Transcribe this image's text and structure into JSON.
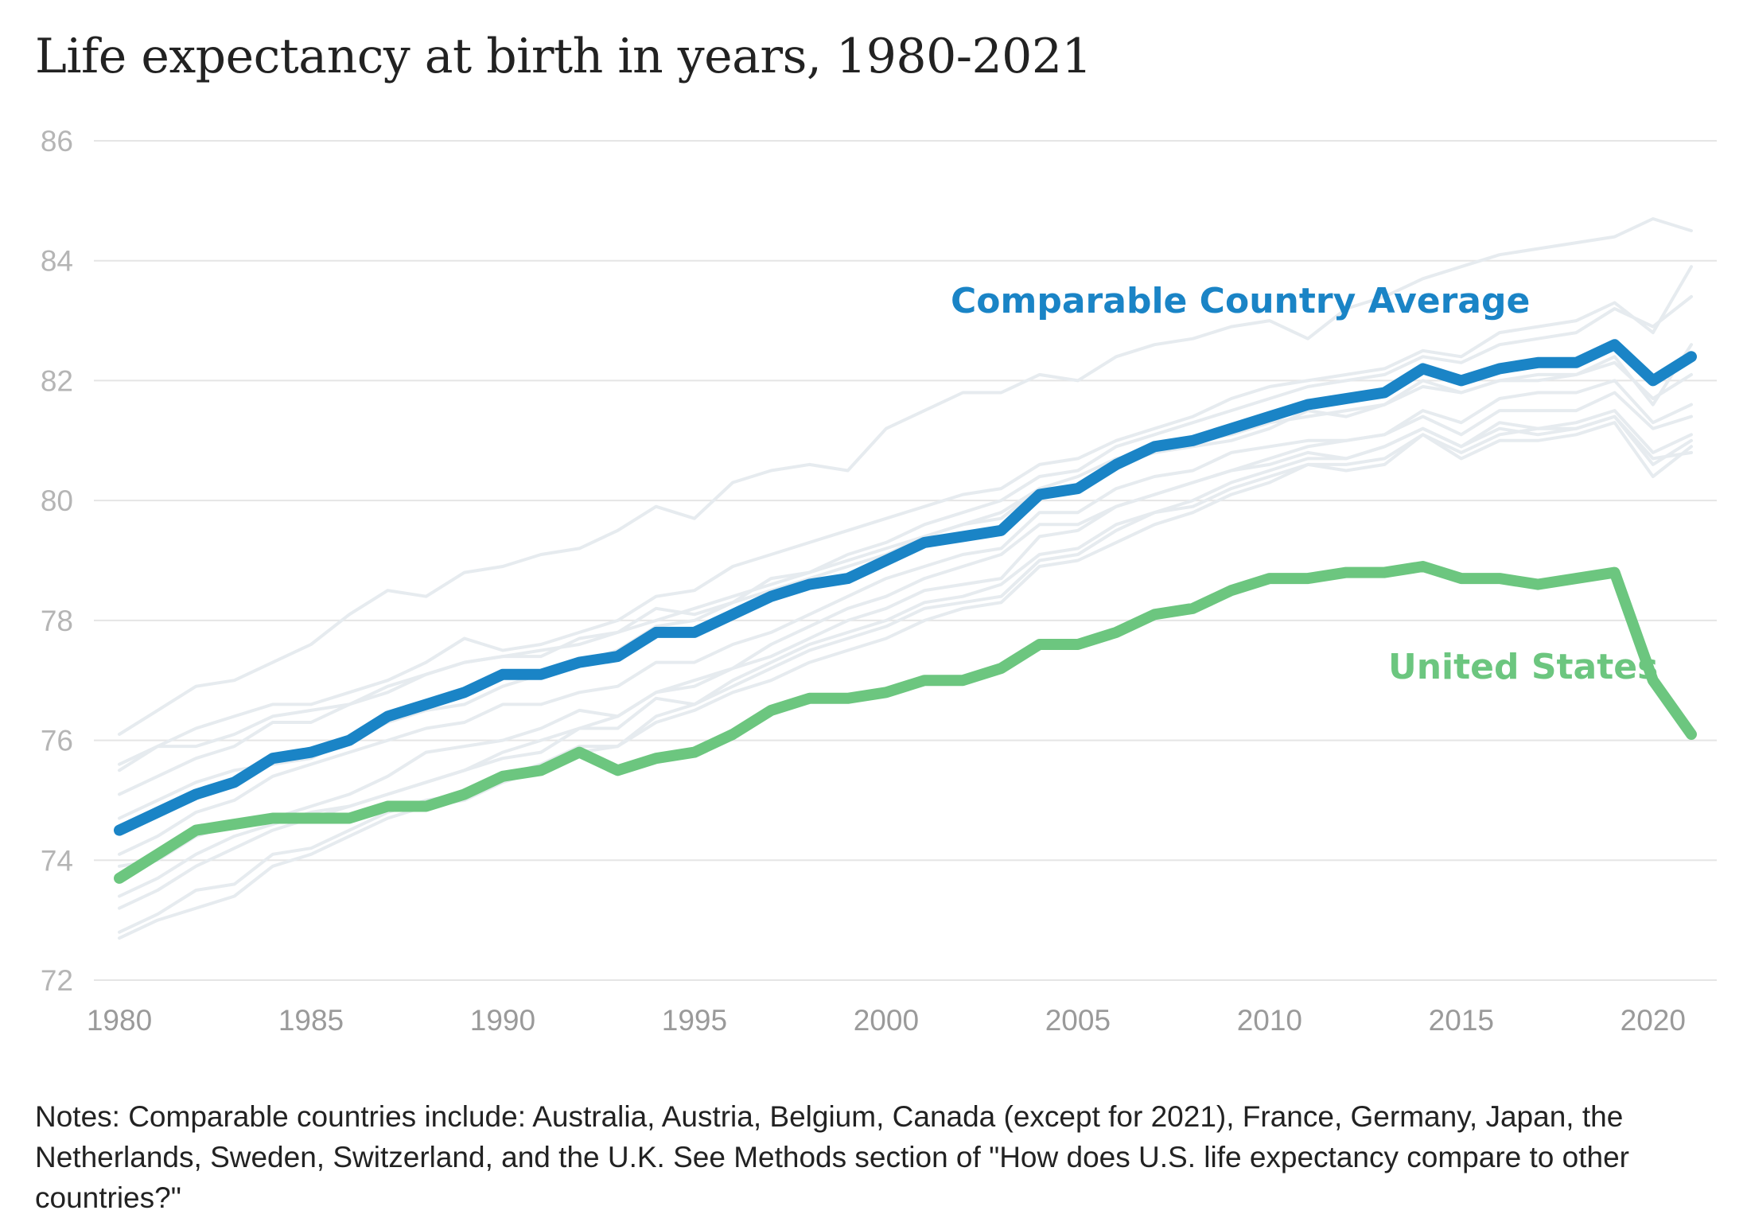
{
  "title": "Life expectancy at birth in years, 1980-2021",
  "notes": "Notes: Comparable countries include: Australia, Austria, Belgium, Canada (except for 2021), France, Germany, Japan, the Netherlands, Sweden, Switzerland, and the U.K. See Methods section of \"How does U.S. life expectancy compare to other countries?\"",
  "colors": {
    "comparable": "#1a84c6",
    "us": "#6cc67f",
    "background_lines": "#e6ebef",
    "grid": "#e5e5e5",
    "tick_text": "#b5b5b5"
  },
  "chart_data": {
    "type": "line",
    "title": "Life expectancy at birth in years, 1980-2021",
    "xlabel": "",
    "ylabel": "",
    "xlim": [
      1980,
      2021
    ],
    "ylim": [
      72,
      86
    ],
    "xticks": [
      1980,
      1985,
      1990,
      1995,
      2000,
      2005,
      2010,
      2015,
      2020
    ],
    "yticks": [
      72,
      74,
      76,
      78,
      80,
      82,
      84,
      86
    ],
    "grid": true,
    "x": [
      1980,
      1981,
      1982,
      1983,
      1984,
      1985,
      1986,
      1987,
      1988,
      1989,
      1990,
      1991,
      1992,
      1993,
      1994,
      1995,
      1996,
      1997,
      1998,
      1999,
      2000,
      2001,
      2002,
      2003,
      2004,
      2005,
      2006,
      2007,
      2008,
      2009,
      2010,
      2011,
      2012,
      2013,
      2014,
      2015,
      2016,
      2017,
      2018,
      2019,
      2020,
      2021
    ],
    "series": [
      {
        "name": "Comparable Country Average",
        "values": [
          74.5,
          74.8,
          75.1,
          75.3,
          75.7,
          75.8,
          76.0,
          76.4,
          76.6,
          76.8,
          77.1,
          77.1,
          77.3,
          77.4,
          77.8,
          77.8,
          78.1,
          78.4,
          78.6,
          78.7,
          79.0,
          79.3,
          79.4,
          79.5,
          80.1,
          80.2,
          80.6,
          80.9,
          81.0,
          81.2,
          81.4,
          81.6,
          81.7,
          81.8,
          82.2,
          82.0,
          82.2,
          82.3,
          82.3,
          82.6,
          82.0,
          82.4
        ]
      },
      {
        "name": "United States",
        "values": [
          73.7,
          74.1,
          74.5,
          74.6,
          74.7,
          74.7,
          74.7,
          74.9,
          74.9,
          75.1,
          75.4,
          75.5,
          75.8,
          75.5,
          75.7,
          75.8,
          76.1,
          76.5,
          76.7,
          76.7,
          76.8,
          77.0,
          77.0,
          77.2,
          77.6,
          77.6,
          77.8,
          78.1,
          78.2,
          78.5,
          78.7,
          78.7,
          78.8,
          78.8,
          78.9,
          78.7,
          78.7,
          78.6,
          78.7,
          78.8,
          77.0,
          76.1
        ]
      }
    ],
    "background_series": [
      [
        76.1,
        76.5,
        76.9,
        77.0,
        77.3,
        77.6,
        78.1,
        78.5,
        78.4,
        78.8,
        78.9,
        79.1,
        79.2,
        79.5,
        79.9,
        79.7,
        80.3,
        80.5,
        80.6,
        80.5,
        81.2,
        81.5,
        81.8,
        81.8,
        82.1,
        82.0,
        82.4,
        82.6,
        82.7,
        82.9,
        83.0,
        82.7,
        83.2,
        83.4,
        83.7,
        83.9,
        84.1,
        84.2,
        84.3,
        84.4,
        84.7,
        84.5
      ],
      [
        75.6,
        75.9,
        76.2,
        76.4,
        76.6,
        76.6,
        76.8,
        77.0,
        77.3,
        77.7,
        77.5,
        77.6,
        77.8,
        78.0,
        78.4,
        78.5,
        78.9,
        79.1,
        79.3,
        79.5,
        79.7,
        79.9,
        80.1,
        80.2,
        80.6,
        80.7,
        81.0,
        81.2,
        81.4,
        81.7,
        81.9,
        82.0,
        82.1,
        82.2,
        82.5,
        82.4,
        82.8,
        82.9,
        83.0,
        83.3,
        82.8,
        83.9
      ],
      [
        75.5,
        75.9,
        75.9,
        76.1,
        76.4,
        76.5,
        76.6,
        76.8,
        77.1,
        77.3,
        77.4,
        77.5,
        77.6,
        77.8,
        78.0,
        78.2,
        78.4,
        78.6,
        78.8,
        79.1,
        79.3,
        79.6,
        79.8,
        80.0,
        80.4,
        80.5,
        80.9,
        81.1,
        81.3,
        81.5,
        81.7,
        81.9,
        82.0,
        82.1,
        82.4,
        82.3,
        82.6,
        82.7,
        82.8,
        83.2,
        82.9,
        83.4
      ],
      [
        75.1,
        75.4,
        75.7,
        75.9,
        76.3,
        76.3,
        76.6,
        76.9,
        77.1,
        77.3,
        77.4,
        77.4,
        77.7,
        77.8,
        78.2,
        78.1,
        78.3,
        78.7,
        78.8,
        79.0,
        79.2,
        79.4,
        79.6,
        79.7,
        80.2,
        80.2,
        80.6,
        80.8,
        80.9,
        81.0,
        81.2,
        81.5,
        81.4,
        81.6,
        82.0,
        81.8,
        82.0,
        82.1,
        82.1,
        82.4,
        81.6,
        82.6
      ],
      [
        74.7,
        75.0,
        75.3,
        75.5,
        75.6,
        75.7,
        76.0,
        76.3,
        76.5,
        76.6,
        76.9,
        77.1,
        77.3,
        77.5,
        77.9,
        78.0,
        78.3,
        78.5,
        78.7,
        78.9,
        79.1,
        79.4,
        79.6,
        79.8,
        80.2,
        80.4,
        80.7,
        80.8,
        81.0,
        81.1,
        81.3,
        81.4,
        81.5,
        81.6,
        81.9,
        81.8,
        82.0,
        82.0,
        82.1,
        82.3,
        81.7,
        82.1
      ],
      [
        74.1,
        74.4,
        74.8,
        75.0,
        75.4,
        75.6,
        75.8,
        76.0,
        76.2,
        76.3,
        76.6,
        76.6,
        76.8,
        76.9,
        77.3,
        77.3,
        77.6,
        77.8,
        78.1,
        78.4,
        78.7,
        78.9,
        79.1,
        79.2,
        79.8,
        79.8,
        80.2,
        80.4,
        80.5,
        80.8,
        80.9,
        81.0,
        81.0,
        81.1,
        81.5,
        81.3,
        81.7,
        81.8,
        81.8,
        82.0,
        81.3,
        81.6
      ],
      [
        73.9,
        74.0,
        74.4,
        74.6,
        74.7,
        74.9,
        75.1,
        75.4,
        75.8,
        75.9,
        76.0,
        76.2,
        76.5,
        76.4,
        76.8,
        76.9,
        77.2,
        77.6,
        77.9,
        78.2,
        78.4,
        78.7,
        78.9,
        79.1,
        79.6,
        79.6,
        79.9,
        80.1,
        80.3,
        80.5,
        80.7,
        80.9,
        81.0,
        81.1,
        81.4,
        81.1,
        81.5,
        81.5,
        81.5,
        81.8,
        81.2,
        81.4
      ],
      [
        73.4,
        73.7,
        74.1,
        74.4,
        74.6,
        74.8,
        74.9,
        75.1,
        75.3,
        75.5,
        75.8,
        76.0,
        76.2,
        76.4,
        76.8,
        77.0,
        77.2,
        77.4,
        77.7,
        78.0,
        78.2,
        78.5,
        78.6,
        78.7,
        79.4,
        79.5,
        79.9,
        80.1,
        80.3,
        80.5,
        80.6,
        80.8,
        80.7,
        80.9,
        81.2,
        80.9,
        81.3,
        81.2,
        81.3,
        81.5,
        80.8,
        81.1
      ],
      [
        73.2,
        73.5,
        73.9,
        74.2,
        74.5,
        74.7,
        74.9,
        75.1,
        75.3,
        75.5,
        75.7,
        75.8,
        76.2,
        76.2,
        76.7,
        76.6,
        77.0,
        77.3,
        77.6,
        77.8,
        78.0,
        78.3,
        78.4,
        78.6,
        79.1,
        79.2,
        79.6,
        79.8,
        80.0,
        80.3,
        80.5,
        80.7,
        80.7,
        80.9,
        81.2,
        80.9,
        81.2,
        81.1,
        81.2,
        81.4,
        80.6,
        81.0
      ],
      [
        72.8,
        73.1,
        73.5,
        73.6,
        74.1,
        74.2,
        74.5,
        74.8,
        75.0,
        75.1,
        75.4,
        75.6,
        75.9,
        75.9,
        76.4,
        76.6,
        76.9,
        77.2,
        77.5,
        77.7,
        77.9,
        78.2,
        78.3,
        78.4,
        79.0,
        79.1,
        79.5,
        79.8,
        79.9,
        80.2,
        80.4,
        80.6,
        80.5,
        80.6,
        81.1,
        80.7,
        81.0,
        81.0,
        81.1,
        81.3,
        80.4,
        80.9
      ],
      [
        72.7,
        73.0,
        73.2,
        73.4,
        73.9,
        74.1,
        74.4,
        74.7,
        74.9,
        75.0,
        75.3,
        75.5,
        75.8,
        75.9,
        76.3,
        76.5,
        76.8,
        77.0,
        77.3,
        77.5,
        77.7,
        78.0,
        78.2,
        78.3,
        78.9,
        79.0,
        79.3,
        79.6,
        79.8,
        80.1,
        80.3,
        80.6,
        80.6,
        80.7,
        81.1,
        80.8,
        81.1,
        81.2,
        81.2,
        81.4,
        80.7,
        80.8
      ]
    ],
    "annotations": [
      {
        "text": "Comparable Country Average",
        "series": "Comparable Country Average"
      },
      {
        "text": "United States",
        "series": "United States"
      }
    ]
  }
}
